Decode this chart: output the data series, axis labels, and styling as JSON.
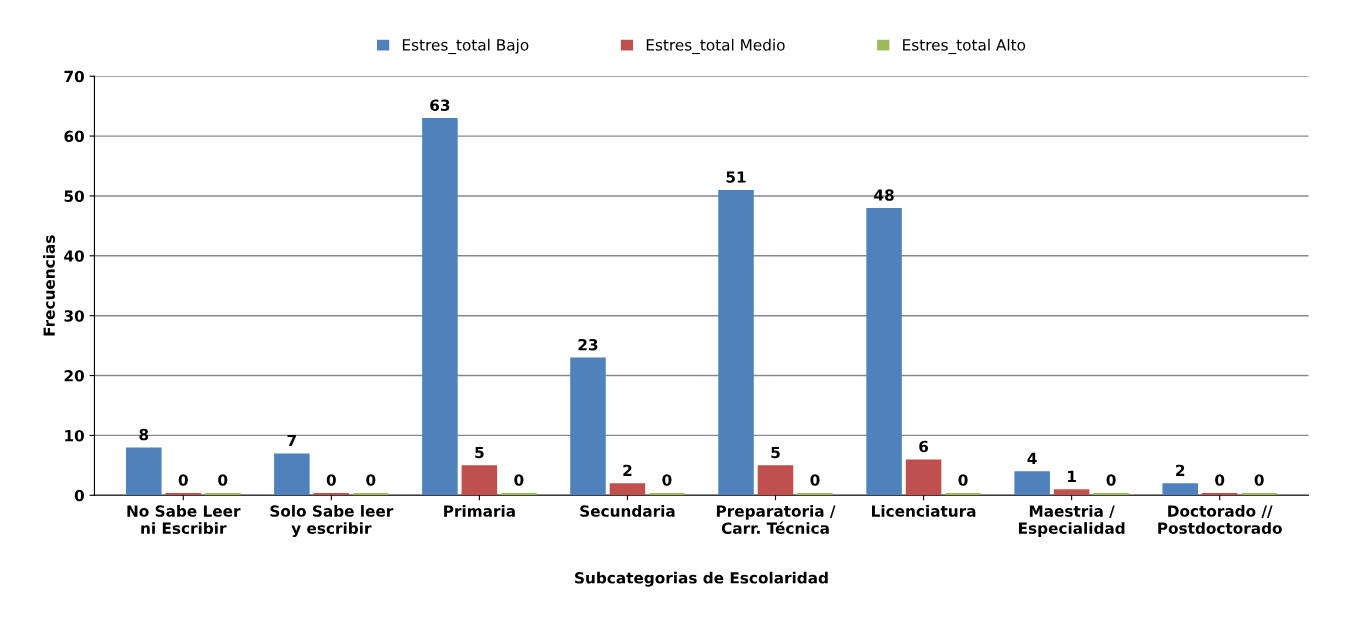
{
  "chart_data": {
    "type": "bar",
    "xlabel": "Subcategorias de Escolaridad",
    "ylabel": "Frecuencias",
    "categories": [
      "No Sabe Leer\nni Escribir",
      "Solo Sabe leer\ny escribir",
      "Primaria",
      "Secundaria",
      "Preparatoria /\nCarr. Técnica",
      "Licenciatura",
      "Maestria /\nEspecialidad",
      "Doctorado //\nPostdoctorado"
    ],
    "series": [
      {
        "name": "Estres_total Bajo",
        "color": "#4f81bd",
        "values": [
          8,
          7,
          63,
          23,
          51,
          48,
          4,
          2
        ]
      },
      {
        "name": "Estres_total Medio",
        "color": "#c0504d",
        "values": [
          0,
          0,
          5,
          2,
          5,
          6,
          1,
          0
        ]
      },
      {
        "name": "Estres_total Alto",
        "color": "#9bbb59",
        "values": [
          0,
          0,
          0,
          0,
          0,
          0,
          0,
          0
        ]
      }
    ],
    "ylim": [
      0,
      70
    ],
    "yticks": [
      0,
      10,
      20,
      30,
      40,
      50,
      60,
      70
    ],
    "grid": "y",
    "legend": "top",
    "data_labels": true
  }
}
